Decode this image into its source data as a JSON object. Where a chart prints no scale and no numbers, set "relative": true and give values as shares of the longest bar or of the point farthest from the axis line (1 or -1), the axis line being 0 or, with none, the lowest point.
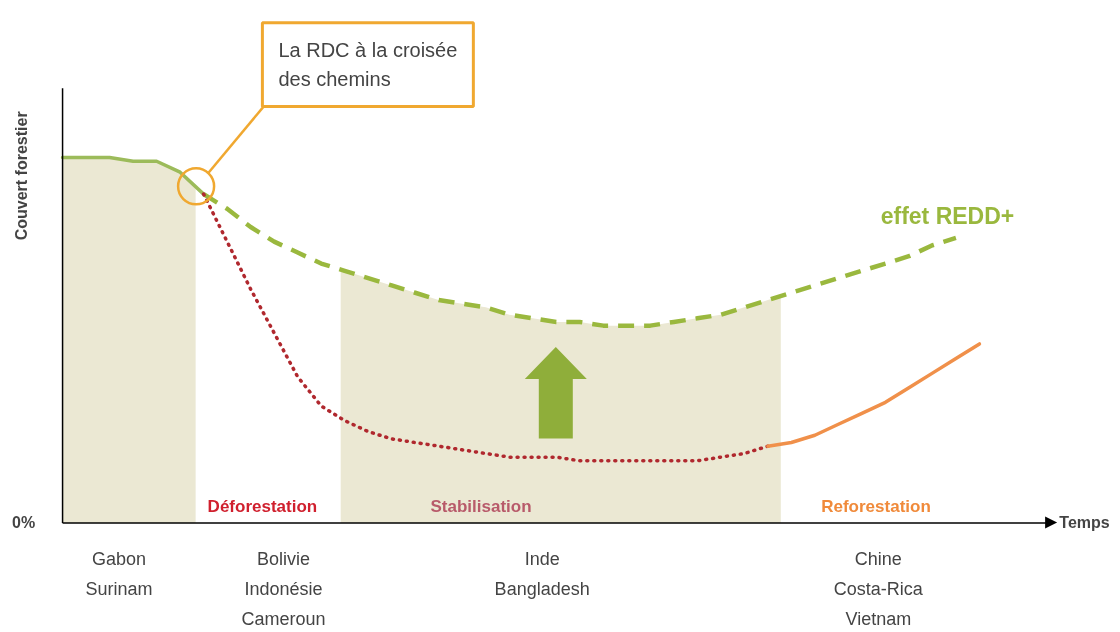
{
  "chart_data": {
    "type": "line",
    "relative": true,
    "ylabel": "Couvert forestier",
    "xlabel": "Temps",
    "categories": [
      null,
      null,
      null,
      null,
      null,
      null,
      null,
      null,
      null,
      null,
      null,
      null,
      null,
      null,
      null,
      null,
      null,
      null,
      null,
      null,
      null,
      null,
      null,
      null,
      null,
      null,
      null,
      null,
      null,
      null,
      null,
      null,
      null,
      null,
      null,
      null,
      null,
      null,
      null,
      null
    ],
    "series": [
      {
        "color": "#9cbb5a",
        "line_style": "solid",
        "values": [
          1,
          1,
          1,
          0.99,
          0.99,
          0.96,
          0.9,
          null,
          null,
          null,
          null,
          null,
          null,
          null,
          null,
          null,
          null,
          null,
          null,
          null,
          null,
          null,
          null,
          null,
          null,
          null,
          null,
          null,
          null,
          null,
          null,
          null,
          null,
          null,
          null,
          null,
          null,
          null,
          null,
          null
        ]
      },
      {
        "name": "effet REDD+",
        "color": "#9ab83e",
        "line_style": "dashed",
        "values": [
          null,
          null,
          null,
          null,
          null,
          null,
          0.9,
          0.86,
          0.81,
          0.77,
          0.74,
          0.71,
          0.69,
          0.67,
          0.65,
          0.63,
          0.61,
          0.6,
          0.59,
          0.57,
          0.56,
          0.55,
          0.55,
          0.54,
          0.54,
          0.54,
          0.55,
          0.56,
          0.57,
          0.59,
          0.61,
          0.63,
          0.65,
          0.67,
          0.69,
          0.71,
          0.73,
          0.76,
          0.78,
          null
        ]
      },
      {
        "color": "#b0282e",
        "line_style": "dotted",
        "values": [
          null,
          null,
          null,
          null,
          null,
          null,
          0.9,
          0.77,
          0.64,
          0.52,
          0.4,
          0.32,
          0.28,
          0.25,
          0.23,
          0.22,
          0.21,
          0.2,
          0.19,
          0.18,
          0.18,
          0.18,
          0.17,
          0.17,
          0.17,
          0.17,
          0.17,
          0.17,
          0.18,
          0.19,
          0.21,
          null,
          null,
          null,
          null,
          null,
          null,
          null,
          null,
          null
        ]
      },
      {
        "color": "#f0904a",
        "line_style": "solid",
        "values": [
          null,
          null,
          null,
          null,
          null,
          null,
          null,
          null,
          null,
          null,
          null,
          null,
          null,
          null,
          null,
          null,
          null,
          null,
          null,
          null,
          null,
          null,
          null,
          null,
          null,
          null,
          null,
          null,
          null,
          null,
          0.21,
          0.22,
          0.24,
          0.27,
          0.3,
          0.33,
          0.37,
          0.41,
          0.45,
          0.49
        ]
      }
    ],
    "annotations": [
      "La RDC à la croisée des chemins",
      "0%",
      "Déforestation",
      "Stabilisation",
      "Reforestation",
      "Gabon Surinam",
      "Bolivie Indonésie Cameroun",
      "Inde Bangladesh",
      "Chine Costa-Rica Vietnam"
    ]
  }
}
